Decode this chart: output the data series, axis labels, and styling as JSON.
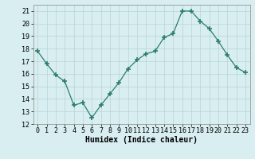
{
  "x": [
    0,
    1,
    2,
    3,
    4,
    5,
    6,
    7,
    8,
    9,
    10,
    11,
    12,
    13,
    14,
    15,
    16,
    17,
    18,
    19,
    20,
    21,
    22,
    23
  ],
  "y": [
    17.8,
    16.8,
    15.9,
    15.4,
    13.5,
    13.7,
    12.5,
    13.5,
    14.4,
    15.3,
    16.4,
    17.1,
    17.6,
    17.8,
    18.9,
    19.2,
    21.0,
    21.0,
    20.2,
    19.6,
    18.6,
    17.5,
    16.5,
    16.1
  ],
  "line_color": "#2d7d6e",
  "marker": "+",
  "marker_size": 4,
  "bg_color": "#d8eef0",
  "grid_color": "#b8d4d8",
  "xlabel": "Humidex (Indice chaleur)",
  "xlim": [
    -0.5,
    23.5
  ],
  "ylim": [
    12,
    21.5
  ],
  "yticks": [
    12,
    13,
    14,
    15,
    16,
    17,
    18,
    19,
    20,
    21
  ],
  "xticks": [
    0,
    1,
    2,
    3,
    4,
    5,
    6,
    7,
    8,
    9,
    10,
    11,
    12,
    13,
    14,
    15,
    16,
    17,
    18,
    19,
    20,
    21,
    22,
    23
  ],
  "xlabel_fontsize": 7,
  "tick_fontsize": 6
}
